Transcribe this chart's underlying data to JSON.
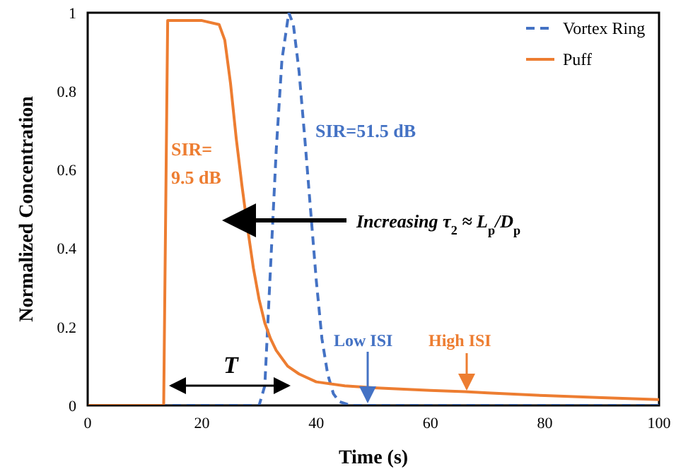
{
  "chart_data": {
    "type": "line",
    "xlabel": "Time (s)",
    "ylabel": "Normalized Concentration",
    "xlim": [
      0,
      100
    ],
    "xticks": [
      0,
      20,
      40,
      60,
      80,
      100
    ],
    "ylim": [
      0,
      1
    ],
    "yticks": [
      0,
      0.2,
      0.4,
      0.6,
      0.8,
      1
    ],
    "grid": false,
    "legend": "top right",
    "marker": "none",
    "series": [
      {
        "name": "Vortex Ring",
        "color": "#4472c4",
        "line_style": "dashed",
        "x": [
          0,
          30,
          31,
          32,
          33,
          34,
          35.2,
          36,
          37,
          38,
          39,
          40,
          41,
          42,
          43,
          44,
          46,
          48,
          100
        ],
        "values": [
          0,
          0,
          0.05,
          0.35,
          0.65,
          0.88,
          1,
          0.97,
          0.85,
          0.68,
          0.5,
          0.32,
          0.17,
          0.08,
          0.03,
          0.01,
          0,
          0,
          0
        ]
      },
      {
        "name": "Puff",
        "color": "#ed7d31",
        "line_style": "solid",
        "x": [
          0,
          13.3,
          14,
          15,
          20,
          23,
          24,
          25,
          26,
          27,
          28,
          29,
          30,
          31,
          32,
          33,
          35,
          37,
          40,
          45,
          50,
          60,
          66,
          70,
          80,
          90,
          100
        ],
        "values": [
          0,
          0,
          0.98,
          0.98,
          0.98,
          0.97,
          0.93,
          0.82,
          0.68,
          0.56,
          0.45,
          0.35,
          0.27,
          0.21,
          0.17,
          0.14,
          0.1,
          0.08,
          0.06,
          0.05,
          0.045,
          0.038,
          0.035,
          0.032,
          0.025,
          0.02,
          0.015
        ]
      }
    ],
    "annotations": [
      "SIR=51.5 dB",
      "SIR=\n9.5 dB",
      "Increasing τ$_{2}$ ≈ L$_{p}$/D$_{p}$",
      "T",
      "Low ISI",
      "High ISI"
    ]
  }
}
